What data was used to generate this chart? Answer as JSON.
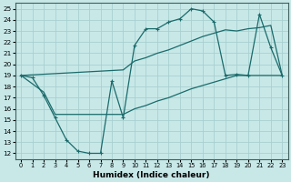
{
  "xlabel": "Humidex (Indice chaleur)",
  "bg_color": "#c8e8e8",
  "grid_color": "#a8d0d0",
  "line_color": "#1a6b6b",
  "xlim": [
    -0.5,
    23.5
  ],
  "ylim": [
    11.5,
    25.5
  ],
  "xticks": [
    0,
    1,
    2,
    3,
    4,
    5,
    6,
    7,
    8,
    9,
    10,
    11,
    12,
    13,
    14,
    15,
    16,
    17,
    18,
    19,
    20,
    21,
    22,
    23
  ],
  "yticks": [
    12,
    13,
    14,
    15,
    16,
    17,
    18,
    19,
    20,
    21,
    22,
    23,
    24,
    25
  ],
  "line1_x": [
    0,
    1,
    2,
    3,
    4,
    5,
    6,
    7,
    8,
    9,
    10,
    11,
    12,
    13,
    14,
    15,
    16,
    17,
    18,
    19,
    20,
    21,
    22,
    23
  ],
  "line1_y": [
    19,
    18.8,
    17.2,
    15.2,
    13.2,
    12.2,
    12.0,
    12.0,
    18.5,
    15.2,
    21.7,
    23.2,
    23.2,
    23.8,
    24.1,
    25.0,
    24.8,
    23.8,
    19.0,
    19.1,
    19.0,
    24.5,
    21.5,
    19.0
  ],
  "line2_x": [
    0,
    23
  ],
  "line2_y": [
    19.0,
    19.0
  ],
  "line3_x": [
    0,
    23
  ],
  "line3_y": [
    19.0,
    19.0
  ],
  "upper_line_x": [
    0,
    9,
    10,
    11,
    12,
    13,
    14,
    15,
    16,
    17,
    18,
    19,
    20,
    21,
    22,
    23
  ],
  "upper_line_y": [
    19.0,
    19.5,
    20.3,
    20.6,
    21.0,
    21.3,
    21.7,
    22.1,
    22.5,
    22.8,
    23.1,
    23.0,
    23.2,
    23.3,
    23.5,
    19.0
  ],
  "lower_line_x": [
    0,
    2,
    3,
    9,
    10,
    11,
    12,
    13,
    14,
    15,
    16,
    17,
    18,
    19,
    20,
    21,
    22,
    23
  ],
  "lower_line_y": [
    19.0,
    17.5,
    15.5,
    15.5,
    16.0,
    16.3,
    16.7,
    17.0,
    17.4,
    17.8,
    18.1,
    18.4,
    18.7,
    19.0,
    19.0,
    19.0,
    19.0,
    19.0
  ]
}
